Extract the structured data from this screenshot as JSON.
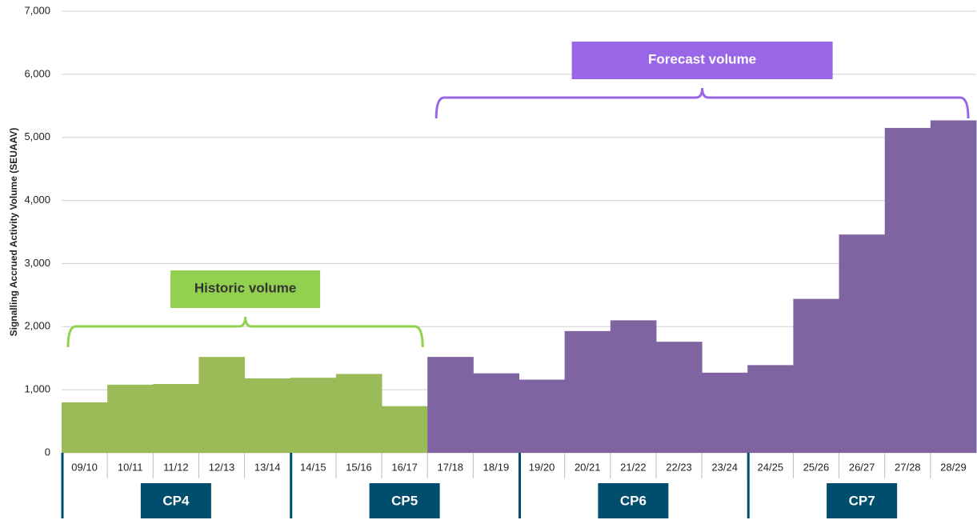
{
  "chart_data": {
    "type": "bar",
    "y_label": "Signalling Accrued Activity Volume (SEUAAV)",
    "categories": [
      "09/10",
      "10/11",
      "11/12",
      "12/13",
      "13/14",
      "14/15",
      "15/16",
      "16/17",
      "17/18",
      "18/19",
      "19/20",
      "20/21",
      "21/22",
      "22/23",
      "23/24",
      "24/25",
      "25/26",
      "26/27",
      "27/28",
      "28/29"
    ],
    "series": [
      {
        "name": "Historic volume",
        "color": "#9bbb59",
        "label_color": "#92d050",
        "values": [
          800,
          1080,
          1090,
          1520,
          1180,
          1190,
          1250,
          740,
          null,
          null,
          null,
          null,
          null,
          null,
          null,
          null,
          null,
          null,
          null,
          null
        ]
      },
      {
        "name": "Forecast volume",
        "color": "#8064a2",
        "label_color": "#9966e8",
        "values": [
          null,
          null,
          null,
          null,
          null,
          null,
          null,
          null,
          1520,
          1260,
          1160,
          1930,
          2100,
          1760,
          1270,
          1390,
          2440,
          3460,
          5150,
          5270
        ]
      }
    ],
    "periods": [
      "CP4",
      "CP5",
      "CP6",
      "CP7"
    ],
    "period_color": "#004d6e",
    "ylim": [
      0,
      7000
    ],
    "yticks": [
      0,
      {
        "value": 1000,
        "label": "1,000"
      },
      {
        "value": 2000,
        "label": "2,000"
      },
      {
        "value": 3000,
        "label": "3,000"
      },
      {
        "value": 4000,
        "label": "4,000"
      },
      {
        "value": 5000,
        "label": "5,000"
      },
      {
        "value": 6000,
        "label": "6,000"
      },
      {
        "value": 7000,
        "label": "7,000"
      }
    ],
    "grid": true
  }
}
